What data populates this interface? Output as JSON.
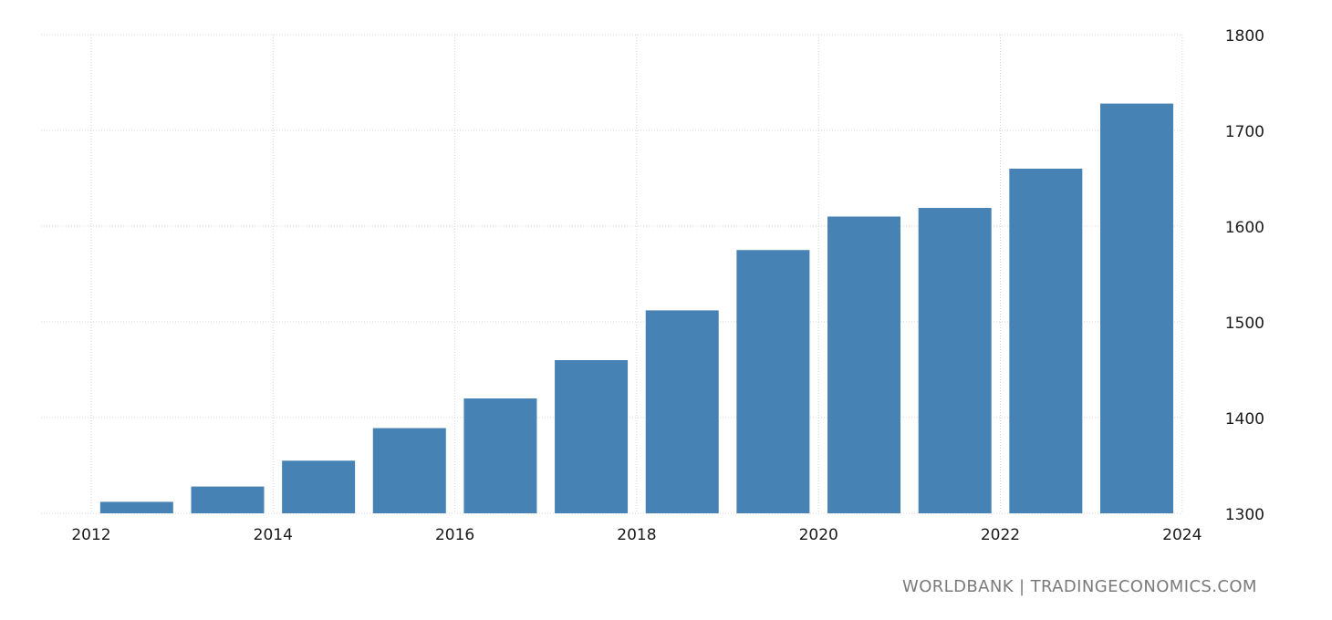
{
  "chart_data": {
    "type": "bar",
    "title": "",
    "xlabel": "",
    "ylabel": "",
    "x_axis_ticks": [
      "2012",
      "2014",
      "2016",
      "2018",
      "2020",
      "2022",
      "2024"
    ],
    "y_axis_ticks": [
      "1300",
      "1400",
      "1500",
      "1600",
      "1700",
      "1800"
    ],
    "ylim": [
      1300,
      1800
    ],
    "y_axis_position": "right",
    "grid": true,
    "colors": {
      "bar": "#4682b4"
    },
    "categories": [
      2012.5,
      2013.5,
      2014.5,
      2015.5,
      2016.5,
      2017.5,
      2018.5,
      2019.5,
      2020.5,
      2021.5,
      2022.5,
      2023.5
    ],
    "values": [
      1312,
      1328,
      1355,
      1389,
      1420,
      1460,
      1512,
      1575,
      1610,
      1619,
      1660,
      1728
    ]
  },
  "footer": {
    "source": "WORLDBANK | TRADINGECONOMICS.COM"
  }
}
